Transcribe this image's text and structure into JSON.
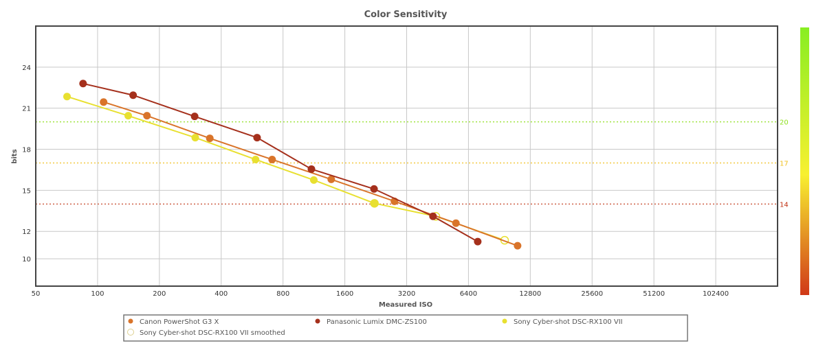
{
  "chart_data": {
    "type": "line",
    "title": "Color Sensitivity",
    "xlabel": "Measured ISO",
    "ylabel": "bits",
    "xscale": "log2",
    "xlim": [
      50,
      204800
    ],
    "ylim": [
      8,
      27
    ],
    "grid": true,
    "x_ticks": [
      50,
      100,
      200,
      400,
      800,
      1600,
      3200,
      6400,
      12800,
      25600,
      51200,
      102400
    ],
    "y_ticks": [
      10,
      12,
      15,
      18,
      21,
      24
    ],
    "reference_lines": [
      {
        "value": 20,
        "label": "20",
        "color": "#8fe020"
      },
      {
        "value": 17,
        "label": "17",
        "color": "#f0c020"
      },
      {
        "value": 14,
        "label": "14",
        "color": "#c03010"
      }
    ],
    "color_scale": {
      "top": "#88ee22",
      "middle": "#f8f030",
      "bottom": "#d03818"
    },
    "legend_position": "bottom",
    "series": [
      {
        "name": "Sony Cyber-shot DSC-RX100 VII smoothed",
        "color": "#e8e030",
        "hollow": true,
        "points": [
          [
            2230,
            14.05
          ],
          [
            4440,
            13.1
          ],
          [
            9600,
            11.35
          ]
        ]
      },
      {
        "name": "Canon PowerShot G3 X",
        "color": "#d9742a",
        "hollow": false,
        "points": [
          [
            107,
            21.45
          ],
          [
            174,
            20.45
          ],
          [
            352,
            18.8
          ],
          [
            708,
            17.25
          ],
          [
            1374,
            15.8
          ],
          [
            2790,
            14.2
          ],
          [
            5560,
            12.6
          ],
          [
            11100,
            10.95
          ]
        ]
      },
      {
        "name": "Panasonic Lumix DMC-ZS100",
        "color": "#a5301c",
        "hollow": false,
        "points": [
          [
            85,
            22.8
          ],
          [
            149,
            21.95
          ],
          [
            297,
            20.4
          ],
          [
            598,
            18.85
          ],
          [
            1100,
            16.55
          ],
          [
            2220,
            15.1
          ],
          [
            4300,
            13.1
          ],
          [
            7100,
            11.25
          ]
        ]
      },
      {
        "name": "Sony Cyber-shot DSC-RX100 VII",
        "color": "#e8e030",
        "hollow": false,
        "points": [
          [
            71,
            21.85
          ],
          [
            141,
            20.45
          ],
          [
            299,
            18.85
          ],
          [
            588,
            17.25
          ],
          [
            1130,
            15.75
          ],
          [
            2230,
            14.05
          ]
        ]
      }
    ],
    "legend": [
      {
        "name": "Canon PowerShot G3 X",
        "color": "#d9742a"
      },
      {
        "name": "Panasonic Lumix DMC-ZS100",
        "color": "#a5301c"
      },
      {
        "name": "Sony Cyber-shot DSC-RX100 VII",
        "color": "#e8e030"
      },
      {
        "name": "Sony Cyber-shot DSC-RX100 VII smoothed",
        "color": "#ffffff"
      }
    ]
  }
}
